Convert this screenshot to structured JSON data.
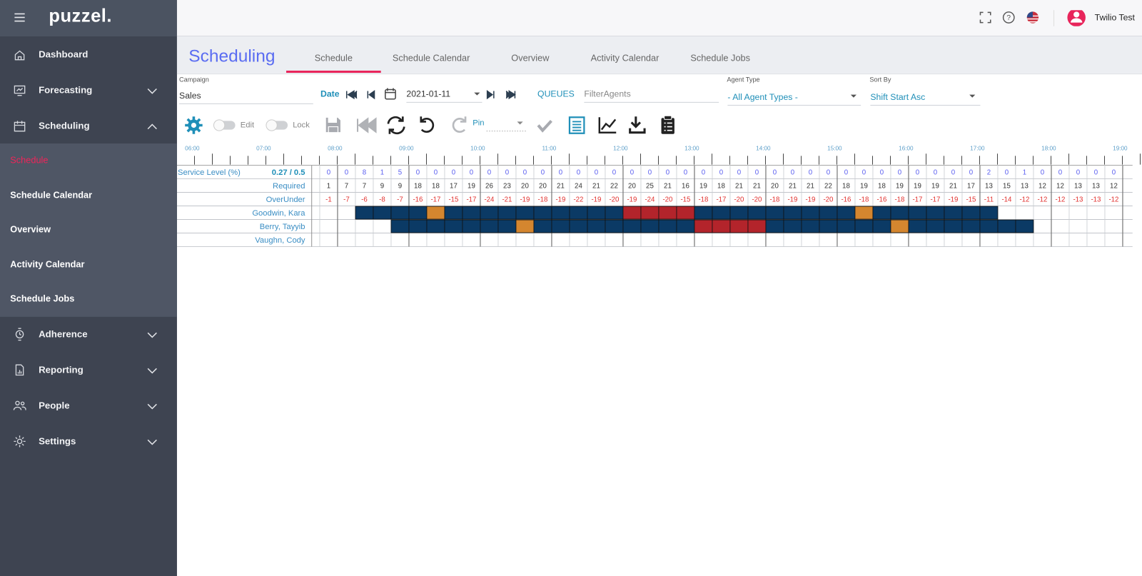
{
  "header": {
    "logo": "puzzel.",
    "user": "Twilio Test"
  },
  "sidebar": {
    "items": [
      {
        "label": "Dashboard"
      },
      {
        "label": "Forecasting",
        "collapsible": true
      },
      {
        "label": "Scheduling",
        "collapsible": true,
        "expanded": true,
        "children": [
          "Schedule",
          "Schedule Calendar",
          "Overview",
          "Activity Calendar",
          "Schedule Jobs"
        ],
        "active_child": 0
      },
      {
        "label": "Adherence",
        "collapsible": true
      },
      {
        "label": "Reporting",
        "collapsible": true
      },
      {
        "label": "People",
        "collapsible": true
      },
      {
        "label": "Settings",
        "collapsible": true
      }
    ]
  },
  "page": {
    "title": "Scheduling",
    "tabs": [
      "Schedule",
      "Schedule Calendar",
      "Overview",
      "Activity Calendar",
      "Schedule Jobs"
    ],
    "active_tab": 0
  },
  "filters": {
    "campaign_label": "Campaign",
    "campaign": "Sales",
    "date_label": "Date",
    "date": "2021-01-11",
    "queues": "QUEUES",
    "filter_placeholder": "FilterAgents",
    "agent_type_label": "Agent Type",
    "agent_type": "- All Agent Types -",
    "sort_label": "Sort By",
    "sort": "Shift Start Asc"
  },
  "toolbar": {
    "edit": "Edit",
    "lock": "Lock",
    "pin": "Pin"
  },
  "schedule": {
    "timeline": [
      "06:00",
      "07:00",
      "08:00",
      "09:00",
      "10:00",
      "11:00",
      "12:00",
      "13:00",
      "14:00",
      "15:00",
      "16:00",
      "17:00",
      "18:00",
      "19:00"
    ],
    "service_level": {
      "label": "Service Level (%)",
      "summary": "0.27 / 0.5",
      "values": [
        0,
        0,
        8,
        1,
        5,
        0,
        0,
        0,
        0,
        0,
        0,
        0,
        0,
        0,
        0,
        0,
        0,
        0,
        0,
        0,
        0,
        0,
        0,
        0,
        0,
        0,
        0,
        0,
        0,
        0,
        0,
        0,
        0,
        0,
        0,
        0,
        0,
        2,
        0,
        1,
        0,
        0,
        0,
        0,
        0
      ]
    },
    "required": {
      "label": "Required",
      "values": [
        1,
        7,
        7,
        9,
        9,
        18,
        18,
        17,
        19,
        26,
        23,
        20,
        20,
        21,
        24,
        21,
        22,
        20,
        25,
        21,
        16,
        19,
        18,
        21,
        21,
        20,
        21,
        21,
        22,
        18,
        19,
        18,
        19,
        19,
        19,
        21,
        17,
        13,
        15,
        13,
        12,
        12,
        13,
        13,
        12
      ]
    },
    "over_under": {
      "label": "OverUnder",
      "values": [
        -1,
        -7,
        -6,
        -8,
        -7,
        -16,
        -17,
        -15,
        -17,
        -24,
        -21,
        -19,
        -18,
        -19,
        -22,
        -19,
        -20,
        -19,
        -24,
        -20,
        -15,
        -18,
        -17,
        -20,
        -20,
        -18,
        -19,
        -19,
        -20,
        -16,
        -18,
        -16,
        -18,
        -17,
        -17,
        -19,
        -15,
        -11,
        -14,
        -12,
        -12,
        -12,
        -13,
        -13,
        -12
      ]
    },
    "agents": [
      {
        "name": "Goodwin, Kara",
        "cells": [
          null,
          null,
          "#0b3a65",
          "#0b3a65",
          "#0b3a65",
          "#0b3a65",
          "#d4862f",
          "#0b3a65",
          "#0b3a65",
          "#0b3a65",
          "#0b3a65",
          "#0b3a65",
          "#0b3a65",
          "#0b3a65",
          "#0b3a65",
          "#0b3a65",
          "#0b3a65",
          "#b3242b",
          "#b3242b",
          "#b3242b",
          "#b3242b",
          "#0b3a65",
          "#0b3a65",
          "#0b3a65",
          "#0b3a65",
          "#0b3a65",
          "#0b3a65",
          "#0b3a65",
          "#0b3a65",
          "#0b3a65",
          "#d4862f",
          "#0b3a65",
          "#0b3a65",
          "#0b3a65",
          "#0b3a65",
          "#0b3a65",
          "#0b3a65",
          "#0b3a65",
          null,
          null,
          null,
          null,
          null,
          null,
          null
        ]
      },
      {
        "name": "Berry, Tayyib",
        "cells": [
          null,
          null,
          null,
          null,
          "#0b3a65",
          "#0b3a65",
          "#0b3a65",
          "#0b3a65",
          "#0b3a65",
          "#0b3a65",
          "#0b3a65",
          "#d4862f",
          "#0b3a65",
          "#0b3a65",
          "#0b3a65",
          "#0b3a65",
          "#0b3a65",
          "#0b3a65",
          "#0b3a65",
          "#0b3a65",
          "#0b3a65",
          "#b3242b",
          "#b3242b",
          "#b3242b",
          "#b3242b",
          "#0b3a65",
          "#0b3a65",
          "#0b3a65",
          "#0b3a65",
          "#0b3a65",
          "#0b3a65",
          "#0b3a65",
          "#d4862f",
          "#0b3a65",
          "#0b3a65",
          "#0b3a65",
          "#0b3a65",
          "#0b3a65",
          "#0b3a65",
          "#0b3a65",
          null,
          null,
          null,
          null,
          null
        ]
      },
      {
        "name": "Vaughn, Cody",
        "cells": [
          null,
          null,
          null,
          null,
          null,
          null,
          null,
          null,
          null,
          null,
          null,
          null,
          null,
          null,
          null,
          null,
          null,
          null,
          null,
          null,
          null,
          null,
          null,
          null,
          null,
          null,
          null,
          null,
          null,
          null,
          null,
          null,
          null,
          null,
          null,
          null,
          null,
          null,
          null,
          null,
          null,
          null,
          null,
          null,
          null
        ]
      }
    ]
  }
}
